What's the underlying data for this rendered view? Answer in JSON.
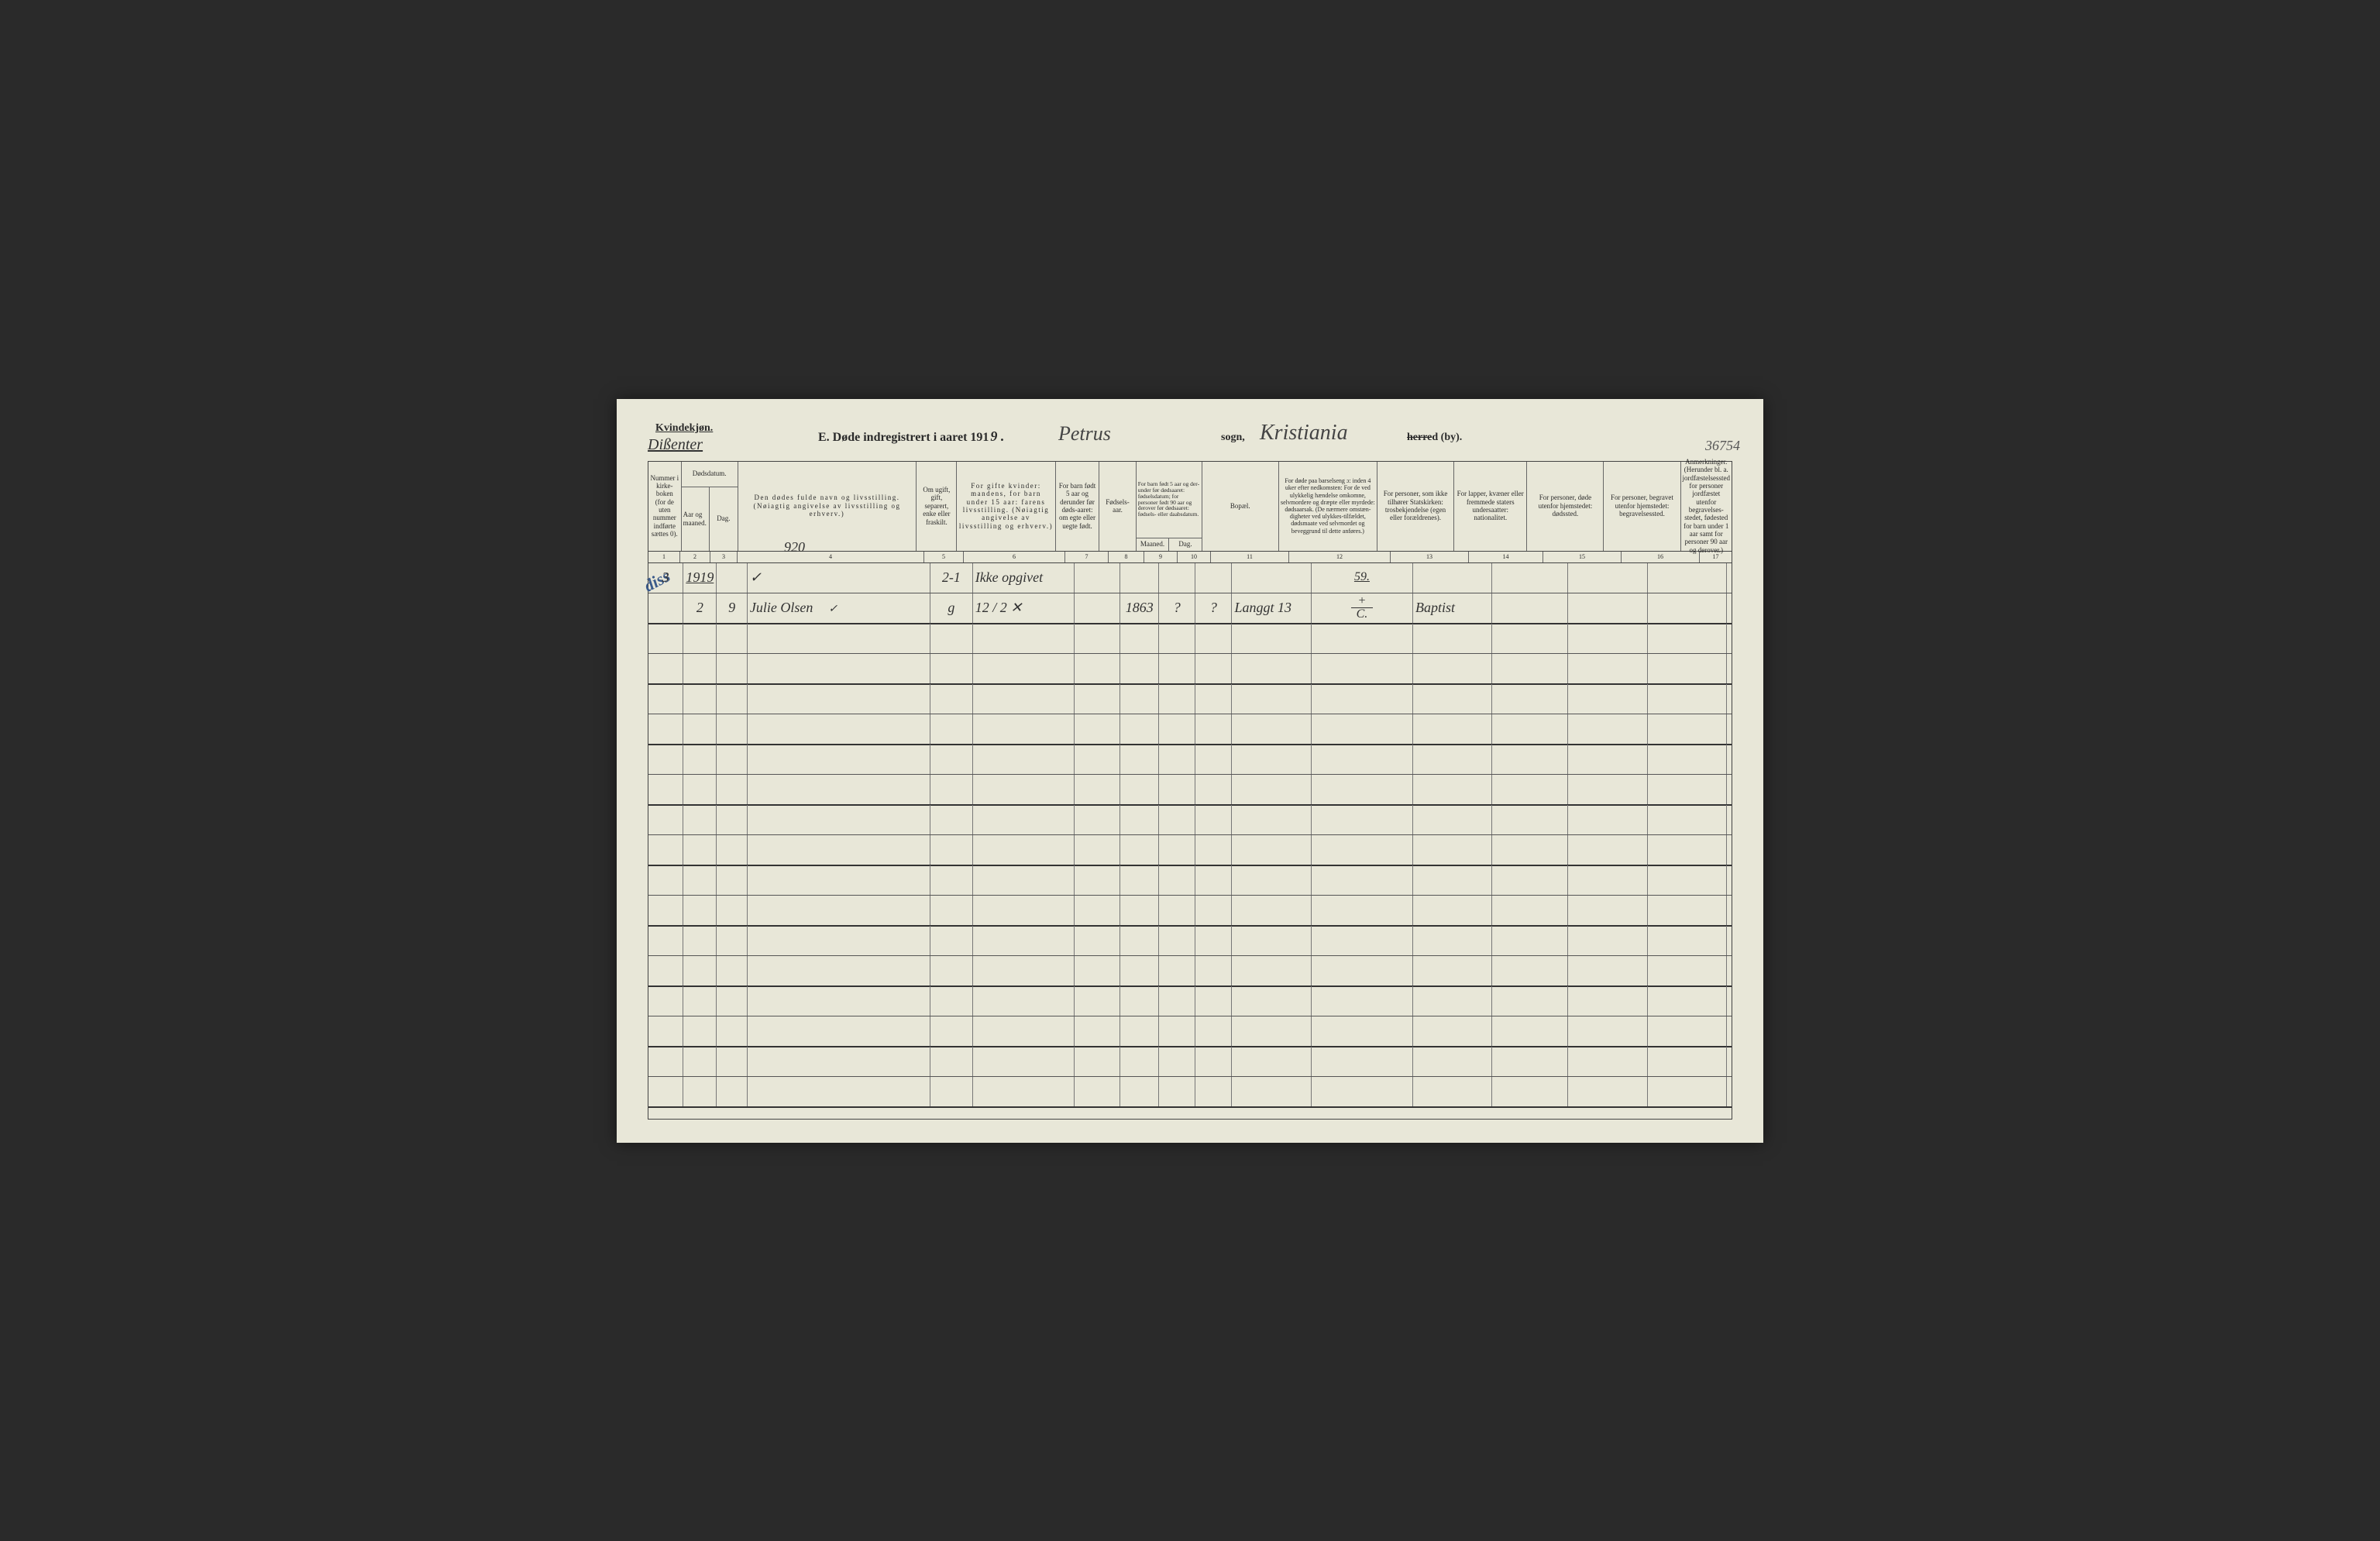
{
  "page_number": "36754",
  "header": {
    "kvindekjon": "Kvindekjøn.",
    "dissenter": "Dißenter",
    "title_prefix": "E.  Døde indregistrert i aaret 191",
    "year_suffix": "9 .",
    "sogn_hand": "Petrus",
    "sogn_label": "sogn,",
    "city_hand": "Kristiania",
    "herred_strike": "herre",
    "herred_suffix": "d (by)."
  },
  "columns": {
    "c1": "Nummer i kirke-boken (for de uten nummer indførte sættes 0).",
    "c23_top": "Dødsdatum.",
    "c2": "Aar og maaned.",
    "c3": "Dag.",
    "c4": "Den dødes fulde navn og livsstilling.\n(Nøiagtig angivelse av livsstilling og erhverv.)",
    "c5": "Om ugift, gift, separert, enke eller fraskilt.",
    "c6": "For gifte kvinder:\nmandens,\nfor barn under 15 aar:\nfarens livsstilling.\n(Nøiagtig angivelse av livsstilling og erhverv.)",
    "c7": "For barn født 5 aar og derunder før døds-aaret: om egte eller uegte født.",
    "c8": "Fødsels-aar.",
    "c910_top": "For barn født 5 aar og der-under før dødsaaret: fødselsdatum; for personer født 90 aar og derover før dødsaaret: fødsels- eller daabsdatum.",
    "c9": "Maaned.",
    "c10": "Dag.",
    "c11": "Bopæl.",
    "c12": "For døde paa barselseng ɔ: inden 4 uker efter nedkomsten: For de ved ulykkelig hændelse omkomne, selvmordere og dræpte eller myrdede: dødsaarsak. (De nærmere omstæn-digheter ved ulykkes-tilfældet, dødsmaate ved selvmordet og beveggrund til dette anføres.)",
    "c13": "For personer, som ikke tilhører Statskirken: trosbekjendelse (egen eller forældrenes).",
    "c14": "For lapper, kvæner eller fremmede staters undersaatter: nationalitet.",
    "c15": "For personer, døde utenfor hjemstedet: dødssted.",
    "c16": "For personer, begravet utenfor hjemstedet: begravelsessted.",
    "c17": "Anmerkninger. (Herunder bl. a. jordfæstelsessted for personer jordfæstet utenfor begravelses-stedet, fødested for barn under 1 aar samt for personer 90 aar og derover.)",
    "nums": [
      "1",
      "2",
      "3",
      "4",
      "5",
      "6",
      "7",
      "8",
      "9",
      "10",
      "11",
      "12",
      "13",
      "14",
      "15",
      "16",
      "17"
    ]
  },
  "annotations": {
    "diss": "diss",
    "col4_hand": "920"
  },
  "rows": [
    {
      "c1": "3",
      "c2": "1919",
      "c3": "",
      "c4": "✓",
      "c5": "2-1",
      "c6": "Ikke opgivet",
      "c7": "",
      "c8": "",
      "c9": "",
      "c10": "",
      "c11": "",
      "c12_top": "59.",
      "c12_bot": "",
      "c13": "",
      "c14": "",
      "c15": "",
      "c16": "",
      "c17": ""
    },
    {
      "c1": "",
      "c2": "2",
      "c3": "9",
      "c4": "Julie Olsen",
      "c4_mark": "✓",
      "c5": "g",
      "c6": "12 / 2 ✕",
      "c7": "",
      "c8": "1863",
      "c9": "?",
      "c10": "?",
      "c11": "Langgt 13",
      "c12_top": "+",
      "c12_bot": "C.",
      "c13": "Baptist",
      "c14": "",
      "c15": "",
      "c16": "",
      "c17": ""
    }
  ],
  "empty_row_count": 16,
  "colors": {
    "paper": "#e8e7d8",
    "ink": "#2a2a2a",
    "handwriting": "#333333",
    "blue_ink": "#3a5a8a",
    "rule": "#555555"
  }
}
